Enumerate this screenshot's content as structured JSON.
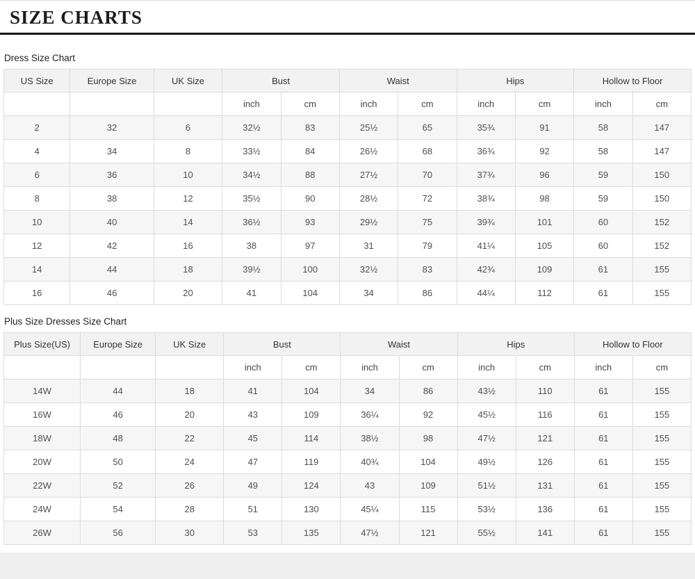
{
  "title": "SIZE CHARTS",
  "colors": {
    "title_rule": "#151515",
    "header_bg": "#f2f2f2",
    "row_alt_bg": "#f6f6f6",
    "border": "#dcdcdc",
    "footer_band": "#efefef"
  },
  "tables": [
    {
      "label": "Dress Size Chart",
      "size_columns": [
        "US Size",
        "Europe Size",
        "UK Size"
      ],
      "measure_groups": [
        "Bust",
        "Waist",
        "Hips",
        "Hollow to Floor"
      ],
      "unit_labels": [
        "inch",
        "cm"
      ],
      "rows": [
        [
          "2",
          "32",
          "6",
          "32½",
          "83",
          "25½",
          "65",
          "35¾",
          "91",
          "58",
          "147"
        ],
        [
          "4",
          "34",
          "8",
          "33½",
          "84",
          "26½",
          "68",
          "36¾",
          "92",
          "58",
          "147"
        ],
        [
          "6",
          "36",
          "10",
          "34½",
          "88",
          "27½",
          "70",
          "37¾",
          "96",
          "59",
          "150"
        ],
        [
          "8",
          "38",
          "12",
          "35½",
          "90",
          "28½",
          "72",
          "38¾",
          "98",
          "59",
          "150"
        ],
        [
          "10",
          "40",
          "14",
          "36½",
          "93",
          "29½",
          "75",
          "39¾",
          "101",
          "60",
          "152"
        ],
        [
          "12",
          "42",
          "16",
          "38",
          "97",
          "31",
          "79",
          "41¼",
          "105",
          "60",
          "152"
        ],
        [
          "14",
          "44",
          "18",
          "39½",
          "100",
          "32½",
          "83",
          "42¾",
          "109",
          "61",
          "155"
        ],
        [
          "16",
          "46",
          "20",
          "41",
          "104",
          "34",
          "86",
          "44¼",
          "112",
          "61",
          "155"
        ]
      ]
    },
    {
      "label": "Plus Size Dresses Size Chart",
      "size_columns": [
        "Plus Size(US)",
        "Europe Size",
        "UK Size"
      ],
      "measure_groups": [
        "Bust",
        "Waist",
        "Hips",
        "Hollow to Floor"
      ],
      "unit_labels": [
        "inch",
        "cm"
      ],
      "rows": [
        [
          "14W",
          "44",
          "18",
          "41",
          "104",
          "34",
          "86",
          "43½",
          "110",
          "61",
          "155"
        ],
        [
          "16W",
          "46",
          "20",
          "43",
          "109",
          "36¼",
          "92",
          "45½",
          "116",
          "61",
          "155"
        ],
        [
          "18W",
          "48",
          "22",
          "45",
          "114",
          "38½",
          "98",
          "47½",
          "121",
          "61",
          "155"
        ],
        [
          "20W",
          "50",
          "24",
          "47",
          "119",
          "40¾",
          "104",
          "49½",
          "126",
          "61",
          "155"
        ],
        [
          "22W",
          "52",
          "26",
          "49",
          "124",
          "43",
          "109",
          "51½",
          "131",
          "61",
          "155"
        ],
        [
          "24W",
          "54",
          "28",
          "51",
          "130",
          "45¼",
          "115",
          "53½",
          "136",
          "61",
          "155"
        ],
        [
          "26W",
          "56",
          "30",
          "53",
          "135",
          "47½",
          "121",
          "55½",
          "141",
          "61",
          "155"
        ]
      ]
    }
  ],
  "chart_data": [
    {
      "type": "table",
      "title": "Dress Size Chart",
      "columns": [
        "US Size",
        "Europe Size",
        "UK Size",
        "Bust inch",
        "Bust cm",
        "Waist inch",
        "Waist cm",
        "Hips inch",
        "Hips cm",
        "Hollow to Floor inch",
        "Hollow to Floor cm"
      ],
      "rows": [
        [
          "2",
          "32",
          "6",
          "32½",
          "83",
          "25½",
          "65",
          "35¾",
          "91",
          "58",
          "147"
        ],
        [
          "4",
          "34",
          "8",
          "33½",
          "84",
          "26½",
          "68",
          "36¾",
          "92",
          "58",
          "147"
        ],
        [
          "6",
          "36",
          "10",
          "34½",
          "88",
          "27½",
          "70",
          "37¾",
          "96",
          "59",
          "150"
        ],
        [
          "8",
          "38",
          "12",
          "35½",
          "90",
          "28½",
          "72",
          "38¾",
          "98",
          "59",
          "150"
        ],
        [
          "10",
          "40",
          "14",
          "36½",
          "93",
          "29½",
          "75",
          "39¾",
          "101",
          "60",
          "152"
        ],
        [
          "12",
          "42",
          "16",
          "38",
          "97",
          "31",
          "79",
          "41¼",
          "105",
          "60",
          "152"
        ],
        [
          "14",
          "44",
          "18",
          "39½",
          "100",
          "32½",
          "83",
          "42¾",
          "109",
          "61",
          "155"
        ],
        [
          "16",
          "46",
          "20",
          "41",
          "104",
          "34",
          "86",
          "44¼",
          "112",
          "61",
          "155"
        ]
      ]
    },
    {
      "type": "table",
      "title": "Plus Size Dresses Size Chart",
      "columns": [
        "Plus Size(US)",
        "Europe Size",
        "UK Size",
        "Bust inch",
        "Bust cm",
        "Waist inch",
        "Waist cm",
        "Hips inch",
        "Hips cm",
        "Hollow to Floor inch",
        "Hollow to Floor cm"
      ],
      "rows": [
        [
          "14W",
          "44",
          "18",
          "41",
          "104",
          "34",
          "86",
          "43½",
          "110",
          "61",
          "155"
        ],
        [
          "16W",
          "46",
          "20",
          "43",
          "109",
          "36¼",
          "92",
          "45½",
          "116",
          "61",
          "155"
        ],
        [
          "18W",
          "48",
          "22",
          "45",
          "114",
          "38½",
          "98",
          "47½",
          "121",
          "61",
          "155"
        ],
        [
          "20W",
          "50",
          "24",
          "47",
          "119",
          "40¾",
          "104",
          "49½",
          "126",
          "61",
          "155"
        ],
        [
          "22W",
          "52",
          "26",
          "49",
          "124",
          "43",
          "109",
          "51½",
          "131",
          "61",
          "155"
        ],
        [
          "24W",
          "54",
          "28",
          "51",
          "130",
          "45¼",
          "115",
          "53½",
          "136",
          "61",
          "155"
        ],
        [
          "26W",
          "56",
          "30",
          "53",
          "135",
          "47½",
          "121",
          "55½",
          "141",
          "61",
          "155"
        ]
      ]
    }
  ]
}
